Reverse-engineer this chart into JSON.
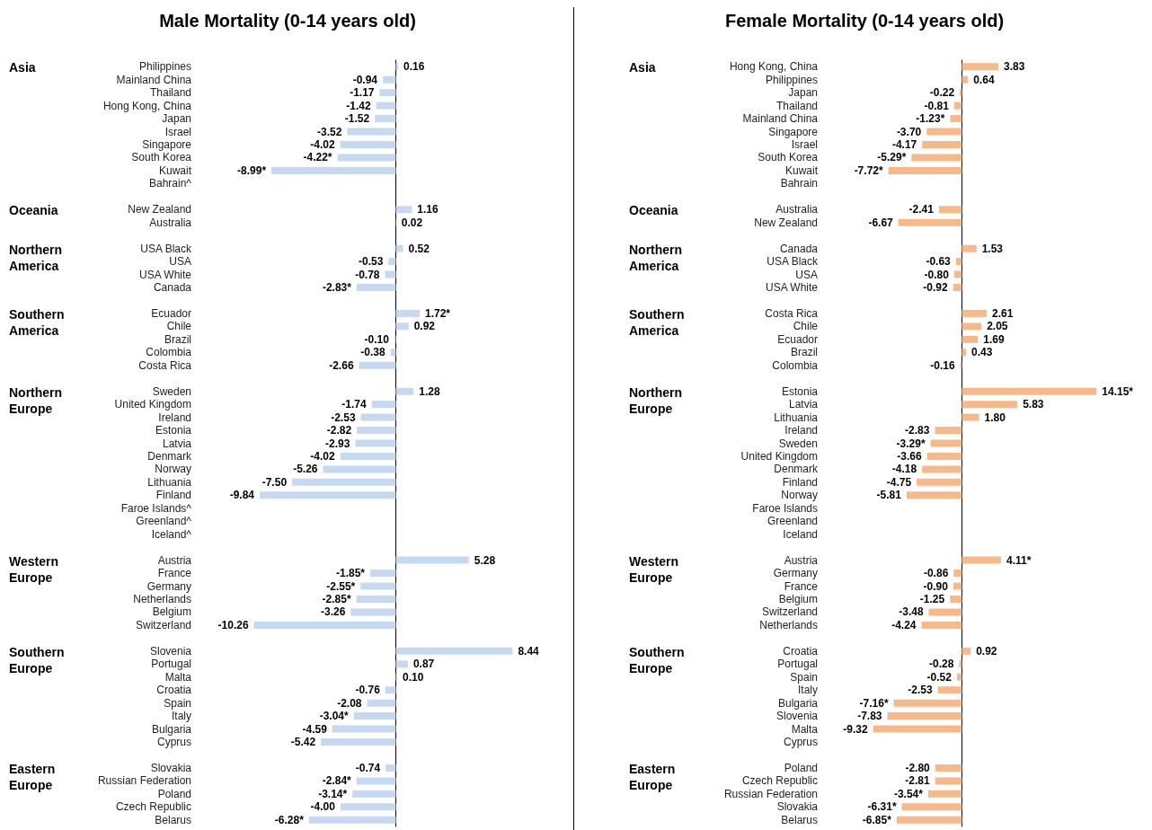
{
  "chart_data": [
    {
      "type": "bar",
      "orientation": "horizontal",
      "title": "Male Mortality (0-14 years old)",
      "tick_labels": "y",
      "color": "#c6d9f1",
      "categories": [
        "Philippines",
        "Mainland China",
        "Thailand",
        "Hong Kong, China",
        "Japan",
        "Israel",
        "Singapore",
        "South Korea",
        "Kuwait",
        "Bahrain^",
        null,
        "New Zealand",
        "Australia",
        null,
        "USA Black",
        "USA",
        "USA White",
        "Canada",
        null,
        "Ecuador",
        "Chile",
        "Brazil",
        "Colombia",
        "Costa Rica",
        null,
        "Sweden",
        "United Kingdom",
        "Ireland",
        "Estonia",
        "Latvia",
        "Denmark",
        "Norway",
        "Lithuania",
        "Finland",
        "Faroe Islands^",
        "Greenland^",
        "Iceland^",
        null,
        "Austria",
        "France",
        "Germany",
        "Netherlands",
        "Belgium",
        "Switzerland",
        null,
        "Slovenia",
        "Portugal",
        "Malta",
        "Croatia",
        "Spain",
        "Italy",
        "Bulgaria",
        "Cyprus",
        null,
        "Slovakia",
        "Russian Federation",
        "Poland",
        "Czech Republic",
        "Belarus"
      ],
      "values": [
        0.16,
        -0.94,
        -1.17,
        -1.42,
        -1.52,
        -3.52,
        -4.02,
        -4.22,
        -8.99,
        null,
        null,
        1.16,
        0.02,
        null,
        0.52,
        -0.53,
        -0.78,
        -2.83,
        null,
        1.72,
        0.92,
        -0.1,
        -0.38,
        -2.66,
        null,
        1.28,
        -1.74,
        -2.53,
        -2.82,
        -2.93,
        -4.02,
        -5.26,
        -7.5,
        -9.84,
        null,
        null,
        null,
        null,
        5.28,
        -1.85,
        -2.55,
        -2.85,
        -3.26,
        -10.26,
        null,
        8.44,
        0.87,
        0.1,
        -0.76,
        -2.08,
        -3.04,
        -4.59,
        -5.42,
        null,
        -0.74,
        -2.84,
        -3.14,
        -4.0,
        -6.28
      ],
      "value_labels": [
        "0.16",
        "-0.94",
        "-1.17",
        "-1.42",
        "-1.52",
        "-3.52",
        "-4.02",
        "-4.22*",
        "-8.99*",
        null,
        null,
        "1.16",
        "0.02",
        null,
        "0.52",
        "-0.53",
        "-0.78",
        "-2.83*",
        null,
        "1.72*",
        "0.92",
        "-0.10",
        "-0.38",
        "-2.66",
        null,
        "1.28",
        "-1.74",
        "-2.53",
        "-2.82",
        "-2.93",
        "-4.02",
        "-5.26",
        "-7.50",
        "-9.84",
        null,
        null,
        null,
        null,
        "5.28",
        "-1.85*",
        "-2.55*",
        "-2.85*",
        "-3.26",
        "-10.26",
        null,
        "8.44",
        "0.87",
        "0.10",
        "-0.76",
        "-2.08",
        "-3.04*",
        "-4.59",
        "-5.42",
        null,
        "-0.74",
        "-2.84*",
        "-3.14*",
        "-4.00",
        "-6.28*"
      ],
      "annotations": [
        "Asia",
        "Oceania",
        "Northern America",
        "Southern America",
        "Northern Europe",
        "Western Europe",
        "Southern Europe",
        "Eastern Europe"
      ]
    },
    {
      "type": "bar",
      "orientation": "horizontal",
      "title": "Female Mortality (0-14 years old)",
      "tick_labels": "y",
      "color": "#f8b98a",
      "categories": [
        "Hong Kong, China",
        "Philippines",
        "Japan",
        "Thailand",
        "Mainland China",
        "Singapore",
        "Israel",
        "South Korea",
        "Kuwait",
        "Bahrain",
        null,
        "Australia",
        "New Zealand",
        null,
        "Canada",
        "USA Black",
        "USA",
        "USA White",
        null,
        "Costa Rica",
        "Chile",
        "Ecuador",
        "Brazil",
        "Colombia",
        null,
        "Estonia",
        "Latvia",
        "Lithuania",
        "Ireland",
        "Sweden",
        "United Kingdom",
        "Denmark",
        "Finland",
        "Norway",
        "Faroe Islands",
        "Greenland",
        "Iceland",
        null,
        "Austria",
        "Germany",
        "France",
        "Belgium",
        "Switzerland",
        "Netherlands",
        null,
        "Croatia",
        "Portugal",
        "Spain",
        "Italy",
        "Bulgaria",
        "Slovenia",
        "Malta",
        "Cyprus",
        null,
        "Poland",
        "Czech Republic",
        "Russian Federation",
        "Slovakia",
        "Belarus"
      ],
      "values": [
        3.83,
        0.64,
        -0.22,
        -0.81,
        -1.23,
        -3.7,
        -4.17,
        -5.29,
        -7.72,
        null,
        null,
        -2.41,
        -6.67,
        null,
        1.53,
        -0.63,
        -0.8,
        -0.92,
        null,
        2.61,
        2.05,
        1.69,
        0.43,
        -0.16,
        null,
        14.15,
        5.83,
        1.8,
        -2.83,
        -3.29,
        -3.66,
        -4.18,
        -4.75,
        -5.81,
        null,
        null,
        null,
        null,
        4.11,
        -0.86,
        -0.9,
        -1.25,
        -3.48,
        -4.24,
        null,
        0.92,
        -0.28,
        -0.52,
        -2.53,
        -7.16,
        -7.83,
        -9.32,
        null,
        null,
        -2.8,
        -2.81,
        -3.54,
        -6.31,
        -6.85
      ],
      "value_labels": [
        "3.83",
        "0.64",
        "-0.22",
        "-0.81",
        "-1.23*",
        "-3.70",
        "-4.17",
        "-5.29*",
        "-7.72*",
        null,
        null,
        "-2.41",
        "-6.67",
        null,
        "1.53",
        "-0.63",
        "-0.80",
        "-0.92",
        null,
        "2.61",
        "2.05",
        "1.69",
        "0.43",
        "-0.16",
        null,
        "14.15*",
        "5.83",
        "1.80",
        "-2.83",
        "-3.29*",
        "-3.66",
        "-4.18",
        "-4.75",
        "-5.81",
        null,
        null,
        null,
        null,
        "4.11*",
        "-0.86",
        "-0.90",
        "-1.25",
        "-3.48",
        "-4.24",
        null,
        "0.92",
        "-0.28",
        "-0.52",
        "-2.53",
        "-7.16*",
        "-7.83",
        "-9.32",
        null,
        null,
        "-2.80",
        "-2.81",
        "-3.54*",
        "-6.31*",
        "-6.85*"
      ],
      "annotations": [
        "Asia",
        "Oceania",
        "Northern America",
        "Southern America",
        "Northern Europe",
        "Western Europe",
        "Southern Europe",
        "Eastern Europe"
      ]
    }
  ]
}
